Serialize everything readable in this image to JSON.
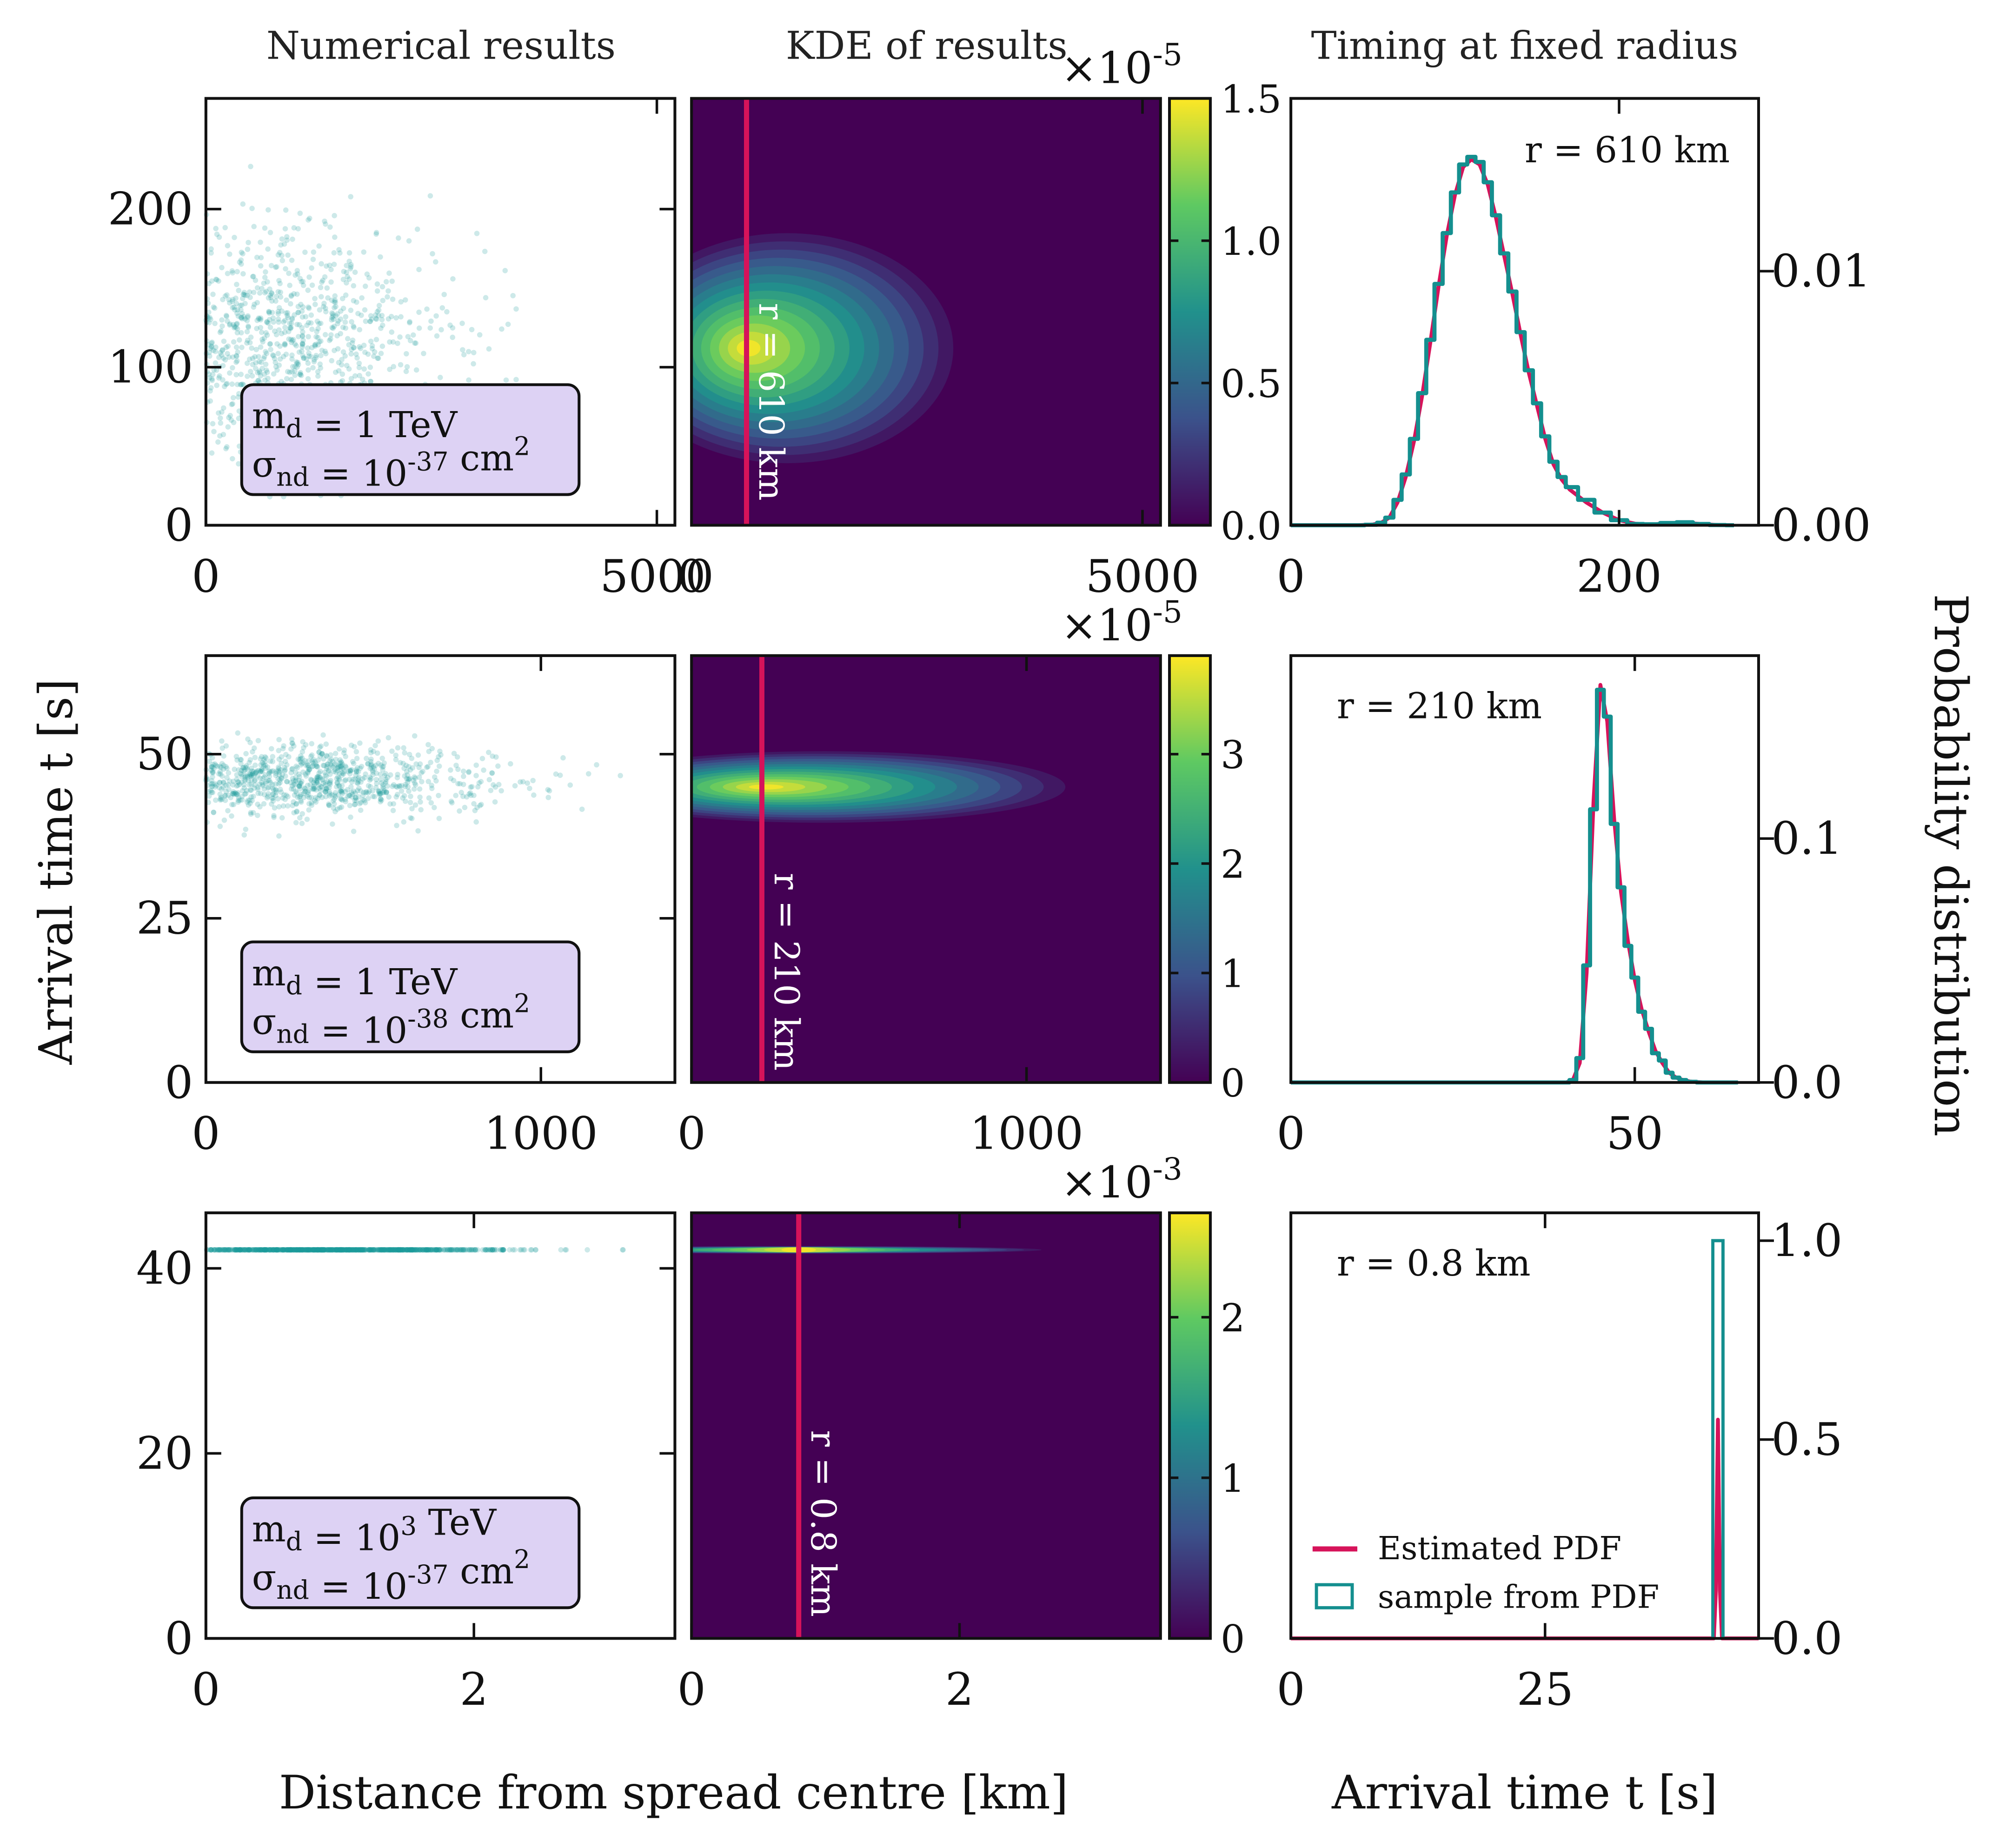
{
  "titles": {
    "col1": "Numerical results",
    "col2": "KDE of results",
    "col3": "Timing at fixed radius"
  },
  "labels": {
    "ylabel_left": "Arrival time t [s]",
    "ylabel_right": "Probability distribution",
    "xlabel_left": "Distance from spread centre [km]",
    "xlabel_right": "Arrival time t [s]"
  },
  "legend": {
    "estimated": "Estimated PDF",
    "sample": "sample from PDF"
  },
  "colors": {
    "scatter": "#1a9a9a",
    "estimated_pdf": "#d6135a",
    "sample_pdf": "#148f8f",
    "radius_line": "#d6135a",
    "box_fill": "#ddd2f4",
    "viridis": [
      "#440154",
      "#3b528b",
      "#21918c",
      "#5ec962",
      "#fde725"
    ]
  },
  "chart_data": [
    {
      "type": "scatter",
      "row": 0,
      "xlim": [
        0,
        5200
      ],
      "ylim": [
        0,
        270
      ],
      "xticks": [
        {
          "v": 0,
          "label": "0"
        },
        {
          "v": 5000,
          "label": "5000"
        }
      ],
      "yticks": [
        {
          "v": 0,
          "label": "0"
        },
        {
          "v": 100,
          "label": "100"
        },
        {
          "v": 200,
          "label": "200"
        }
      ],
      "cloud": {
        "x_mean": 900,
        "x_sd": 900,
        "y_mean": 115,
        "y_sd": 35
      },
      "box": {
        "line1": "m_d = 1 TeV",
        "line2": "σ_nd = 10^-37 cm^2"
      }
    },
    {
      "type": "heatmap",
      "row": 0,
      "xlim": [
        0,
        5200
      ],
      "ylim": [
        0,
        270
      ],
      "xticks": [
        {
          "v": 0,
          "label": "0"
        },
        {
          "v": 5000,
          "label": "5000"
        }
      ],
      "peak": {
        "x": 600,
        "y": 112
      },
      "radius_line": {
        "x": 610,
        "label": "r = 610 km"
      },
      "colorbar": {
        "max": 1.5,
        "multiplier": "×10^-5",
        "ticks": [
          "0.0",
          "0.5",
          "1.0",
          "1.5"
        ],
        "values": [
          0,
          0.5,
          1.0,
          1.5
        ]
      }
    },
    {
      "type": "line",
      "row": 0,
      "xlim": [
        0,
        285
      ],
      "ylim": [
        0,
        0.0168
      ],
      "xticks": [
        {
          "v": 0,
          "label": "0"
        },
        {
          "v": 200,
          "label": "200"
        }
      ],
      "yticks_right": [
        {
          "v": 0,
          "label": "0.00"
        },
        {
          "v": 0.01,
          "label": "0.01"
        }
      ],
      "annotation": "r = 610 km",
      "series": [
        {
          "name": "Estimated PDF",
          "x": [
            0,
            40,
            50,
            55,
            60,
            65,
            70,
            75,
            80,
            85,
            90,
            95,
            100,
            105,
            110,
            115,
            120,
            125,
            130,
            135,
            140,
            145,
            150,
            155,
            160,
            165,
            170,
            180,
            190,
            200,
            210,
            220,
            230,
            240,
            250,
            260,
            270
          ],
          "y": [
            0,
            0,
            3e-05,
            0.0001,
            0.0003,
            0.0009,
            0.0019,
            0.0033,
            0.0051,
            0.0072,
            0.0094,
            0.0114,
            0.013,
            0.0141,
            0.0144,
            0.0142,
            0.0134,
            0.0121,
            0.0106,
            0.0091,
            0.0075,
            0.006,
            0.0047,
            0.0034,
            0.0024,
            0.0018,
            0.0014,
            0.0009,
            0.0005,
            0.0002,
            6e-05,
            3e-05,
            8e-05,
            0.0001,
            5e-05,
            1e-05,
            0
          ]
        },
        {
          "name": "sample from PDF",
          "x": [
            0,
            40,
            50,
            55,
            60,
            65,
            70,
            75,
            80,
            85,
            90,
            95,
            100,
            105,
            110,
            115,
            120,
            125,
            130,
            135,
            140,
            145,
            150,
            155,
            160,
            165,
            170,
            180,
            190,
            200,
            210,
            220,
            230,
            240,
            250,
            260,
            270
          ],
          "y": [
            0,
            0,
            2e-05,
            0.0001,
            0.0003,
            0.001,
            0.002,
            0.0034,
            0.0052,
            0.0073,
            0.0095,
            0.0115,
            0.0131,
            0.0142,
            0.0145,
            0.0143,
            0.0135,
            0.0122,
            0.0107,
            0.0092,
            0.0076,
            0.0061,
            0.0048,
            0.0035,
            0.0025,
            0.0019,
            0.0015,
            0.001,
            0.0005,
            0.0002,
            5e-05,
            4e-05,
            9e-05,
            0.00012,
            5e-05,
            1e-05,
            0
          ]
        }
      ]
    },
    {
      "type": "scatter",
      "row": 1,
      "xlim": [
        0,
        1400
      ],
      "ylim": [
        0,
        65
      ],
      "xticks": [
        {
          "v": 0,
          "label": "0"
        },
        {
          "v": 1000,
          "label": "1000"
        }
      ],
      "yticks": [
        {
          "v": 0,
          "label": "0"
        },
        {
          "v": 25,
          "label": "25"
        },
        {
          "v": 50,
          "label": "50"
        }
      ],
      "cloud": {
        "x_mean": 330,
        "x_sd": 260,
        "y_mean": 46,
        "y_sd": 2.6
      },
      "box": {
        "line1": "m_d = 1 TeV",
        "line2": "σ_nd = 10^-38 cm^2"
      }
    },
    {
      "type": "heatmap",
      "row": 1,
      "xlim": [
        0,
        1400
      ],
      "ylim": [
        0,
        65
      ],
      "xticks": [
        {
          "v": 0,
          "label": "0"
        },
        {
          "v": 1000,
          "label": "1000"
        }
      ],
      "peak": {
        "x": 210,
        "y": 45
      },
      "radius_line": {
        "x": 210,
        "label": "r = 210 km"
      },
      "colorbar": {
        "max": 3.9,
        "multiplier": "×10^-5",
        "ticks": [
          "0",
          "1",
          "2",
          "3"
        ],
        "values": [
          0,
          1,
          2,
          3
        ]
      }
    },
    {
      "type": "line",
      "row": 1,
      "xlim": [
        0,
        68
      ],
      "ylim": [
        0,
        0.175
      ],
      "xticks": [
        {
          "v": 0,
          "label": "0"
        },
        {
          "v": 50,
          "label": "50"
        }
      ],
      "yticks_right": [
        {
          "v": 0,
          "label": "0.0"
        },
        {
          "v": 0.1,
          "label": "0.1"
        }
      ],
      "annotation": "r = 210 km",
      "series": [
        {
          "name": "Estimated PDF",
          "x": [
            0,
            40,
            41,
            42,
            43,
            44,
            45,
            46,
            47,
            48,
            49,
            50,
            51,
            52,
            53,
            54,
            55,
            56,
            57,
            58,
            60,
            65
          ],
          "y": [
            0,
            0,
            0.001,
            0.008,
            0.045,
            0.115,
            0.163,
            0.148,
            0.108,
            0.078,
            0.058,
            0.042,
            0.03,
            0.021,
            0.013,
            0.008,
            0.004,
            0.002,
            0.001,
            0.0004,
            0,
            0
          ]
        },
        {
          "name": "sample from PDF",
          "x": [
            0,
            40,
            41,
            42,
            43,
            44,
            45,
            46,
            47,
            48,
            49,
            50,
            51,
            52,
            53,
            54,
            55,
            56,
            57,
            58,
            60,
            65
          ],
          "y": [
            0,
            0,
            0.001,
            0.01,
            0.048,
            0.112,
            0.161,
            0.15,
            0.106,
            0.08,
            0.056,
            0.043,
            0.029,
            0.022,
            0.012,
            0.009,
            0.004,
            0.002,
            0.001,
            0.0003,
            0,
            0
          ]
        }
      ]
    },
    {
      "type": "scatter",
      "row": 2,
      "xlim": [
        0,
        3.5
      ],
      "ylim": [
        0,
        46
      ],
      "xticks": [
        {
          "v": 0,
          "label": "0"
        },
        {
          "v": 2,
          "label": "2"
        }
      ],
      "yticks": [
        {
          "v": 0,
          "label": "0"
        },
        {
          "v": 20,
          "label": "20"
        },
        {
          "v": 40,
          "label": "40"
        }
      ],
      "cloud": {
        "x_mean": 1.0,
        "x_sd": 0.55,
        "y_mean": 42,
        "y_sd": 0
      },
      "box": {
        "line1": "m_d = 10^3 TeV",
        "line2": "σ_nd = 10^-37 cm^2"
      }
    },
    {
      "type": "heatmap",
      "row": 2,
      "xlim": [
        0,
        3.5
      ],
      "ylim": [
        0,
        46
      ],
      "xticks": [
        {
          "v": 0,
          "label": "0"
        },
        {
          "v": 2,
          "label": "2"
        }
      ],
      "peak": {
        "x": 0.8,
        "y": 42
      },
      "radius_line": {
        "x": 0.8,
        "label": "r = 0.8 km"
      },
      "colorbar": {
        "max": 2.65,
        "multiplier": "×10^-3",
        "ticks": [
          "0",
          "1",
          "2"
        ],
        "values": [
          0,
          1,
          2
        ]
      }
    },
    {
      "type": "line",
      "row": 2,
      "xlim": [
        0,
        46
      ],
      "ylim": [
        0,
        1.07
      ],
      "xticks": [
        {
          "v": 0,
          "label": "0"
        },
        {
          "v": 25,
          "label": "25"
        }
      ],
      "yticks_right": [
        {
          "v": 0,
          "label": "0.0"
        },
        {
          "v": 0.5,
          "label": "0.5"
        },
        {
          "v": 1.0,
          "label": "1.0"
        }
      ],
      "annotation": "r = 0.8 km",
      "series": [
        {
          "name": "Estimated PDF",
          "x": [
            0,
            41.6,
            41.8,
            42.0,
            42.2,
            42.4,
            46
          ],
          "y": [
            0,
            0,
            0.12,
            0.55,
            0.12,
            0,
            0
          ]
        },
        {
          "name": "sample from PDF",
          "bins": [
            [
              41.5,
              42.5,
              1.0
            ]
          ]
        }
      ]
    }
  ]
}
